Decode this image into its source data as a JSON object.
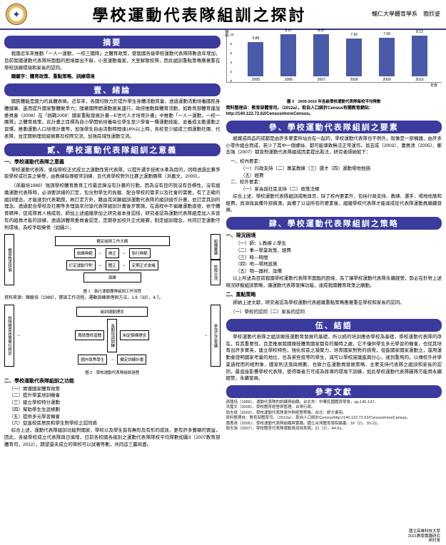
{
  "header": {
    "title": "學校運動代表隊組訓之探討",
    "affiliation": "輔仁大學體育學系",
    "author": "簡欣姿"
  },
  "sections": {
    "abstract": {
      "head": "摘要",
      "body": "我國近年來推動「一人一運動，一校三國隊」之體育政策，使我國各級學校運動代表隊隊數逐年增加，目前我國運動代表隊所面臨的困境層出不窮，小至運動傷害，大至解散校隊，因此組訓重點策略應著重在學校訓練環境和家長的認同。",
      "keywords": "關鍵字：體育政策、重點策略、訓練環境"
    },
    "s1": {
      "head": "壹、緒論",
      "body": "國民體能是國力的具體表徵。近年來，各國均致力於提升學生身體活動質量，透過運動活動培養國民身體健康、進而提升國家整體競爭力；隨著國際間運動風氣盛行，政府推動興體育活動，如教育部體育建設委員會（2008）在「挑戰2008：國家重點發展計畫—E世代人才培育計畫」中推動「一人一運動，一校一團隊」之體育政策，此計畫之目標為自小學開始培養每位學生至少學會一種運動技能，並養成主動運動之習慣，推動運動人口培增計畫等，加強學生自由活動時間達18%以上時，各校至少組成三個運動社團、代表隊，並定期辦理班級競賽及校際交流，加強區域性運動交流。"
    },
    "s2": {
      "head": "貳、學校運動代表隊組訓之意義",
      "subhead1": "一、學校運動代表隊之意義",
      "body1": "學校運動代表隊，係指學校正式成立之運動性質代表隊，以提升選手技術水準為目的，同時透過比賽爭取學校或社區之榮譽，由教練指導經常訓練、且代表學校對外比賽之運動團隊（洪嘉文，2009）。",
      "body2": "（孫龍培1989）強調學校體育教育工作最忌諱沒有計畫的行動，因為沒有目的就沒有目標性，沒有組織運動代表隊時，必須要詳細的訂定，包含對學生的負載、配合學校的需求以及社會的需要，有了正確的組訓理念，才能達到代表範圍，故訂定方針，藉由其突顯組訓運動代表隊的組訓值作計畫、並訂定其訓的理念、透過配合學校及社團等多理論來討論代表隊組訓計畫後步實施，在過程中不偏離運動道德，依守體育精神，促成隊員人格成就，師加上述組織參加之研究者本身認結，研究者認為運動代表隊組是加入未曾有的組員才能的訓練，透過訓體育委員會認定，定期參加校外正式競賽，制定組訓理念，共同訂定運動守則環境，為校爭取榮譽（如圖2）。",
      "subhead2": "二、學校運動代表隊組訓之功能",
      "func_list": [
        "（一）實徹國家體育政策",
        "（二）提升學業培訓機會",
        "（三）建立學校特分運動",
        "（四）幫助學生生涯規劃",
        "（五）提供多元學習機會",
        "（六）促進校區居民和學生對學校之認同感"
      ],
      "body3": "綜合上述，運動代表隊組訓功能對國家、學校以及學生皆有無形及有形的成效，更有許多豐碩的實益，因此，各級學校成立代表隊與日俱增，日前各校國各級別之運動代表隊隊校平均隊數如圖3（2007教育部體育司，2012），期望還未成立的學校可以試著等劃，共同造三贏局面。"
    },
    "s3": {
      "head": "參、學校運動代表隊組訓之要素",
      "body": "組織或商品的成都是由許多要素所站合在一起的，學校運動代表隊也不例外，就像是一部機器，由許多小零件組合而成，若少了其中一個螺絲、都可能導致無法正常運作。翁志成（2003）、蕭惠清（2005）、鄭志強（2007）都曾對運動代表隊組成因素提出看法，研究者師納如下：",
      "in_list_head": "一、校內要素：",
      "in_list": [
        "（一）行政支持（二）專業教練（三）選才（四）運動場地他施",
        "（五）經費"
      ],
      "out_list_head": "二、校外要素：",
      "out_list": [
        "（一）家長與社區支持（二）政策法規"
      ],
      "body2": "綜合上述，學校運動代表隊組訓成敗與否，除了校內要素外，包括行政支持、教練、選手、場地他施和經費，尚須與具備外部資源，具備了以這所有的要素後，組織學校代表隊才能達成從代表隊運動員繼續發展。"
    },
    "s4": {
      "head": "肆、學校運動代表隊組訓之策略",
      "subhead": "一、現況困境",
      "list": [
        "（一）師：1.教練 2.學生",
        "（二）事—學業政策、經費",
        "（三）時—時間",
        "（四）地—場地設施",
        "（五）物—器材、設備"
      ],
      "body": "以上所述為目前我國學校運動代表隊常面臨的困境，為了讓學校運動代表隊永續經營，勢必在針對上述現況研擬組訓策略，讓運動代表隊發揮功能，達成我國體育政策之願勤。",
      "subhead2": "二、重點策略",
      "body2": "師納上述文獻，研究者認為學校運動代表組織重點策略應著重在學校和家長的認同。",
      "list2": "（一）學校的認同（二）家長的認同"
    },
    "s5": {
      "head": "伍、結語",
      "body": "學校運動代表隊之組訓競技運動育發展的基礎，所以統的培訓應依學校為基礎，學校運動代表隊的存在，有其重要性，且是推展我國競技體育國家都有的獨特之處，它不僅供學生多元學習的機會，也從其培育出許多實英，建立學校特色，強化校區之凝聚力，培育國家對對的感覺，但進國家國家運動立，還用運動會證明國家考量的地位，也為某些技等的學生，減可以學校諾議進興分心，達到重飛的。以傳校外井學業過程而的相對象，國家則法落與規劃、也致力在運動員發展策略，主要支持代表隊之組訓和家長的認同，最直接影響學校代表隊，使得兩者方可成為將導的環境下訓練，如此學校運動代表隊圖隊方能用永續經營，永續發展。"
    },
    "refs": {
      "head": "參考文獻",
      "items": [
        "孫龍培（1989）。運動代表隊的訓練與組織。台北市：中華民國體育學會。pp.140-147。",
        "洪嘉文（2009）。學校體育經營與管理。台灣行政。",
        "翁志成（2003）。學校運動代表隊運作與經營策略。台北：師大書苑。",
        "資料整理自：教育部體育司。（2012a）。取自人口統計Census/http://140.122.72.62/Census/moreCensus。",
        "蕭惠清（2005）。學校運動代表隊組織與實踐。國立台灣體育學院論叢。16（2）。93-22。",
        "鄭志強（2007）。學校體育代表隊運動員培訓系統。21（2）。44-51。"
      ]
    },
    "chart": {
      "y_max": 10,
      "y_ticks": [
        "10",
        "8",
        "6",
        "4",
        "2",
        "0"
      ],
      "y_label": "隊數",
      "values": [
        6.89,
        8.37,
        8.37,
        7.62,
        7.69,
        8.13
      ],
      "labels": [
        "2005",
        "2006",
        "2007",
        "2008",
        "2009",
        "2010"
      ],
      "x_label": "年度",
      "caption": "圖 3　2005-2010 年各級學校運動代表隊每校平均隊數",
      "source": "資料整理自：教育部體育司。（2012a）。取自人口統計Census有關教育網站：http://140.122.72.62/Census/moreCensus。",
      "bar_color": "#4a5aa8"
    },
    "fig1": {
      "boxes": {
        "tl": "體育敘述評價",
        "t1": "擬定組訓工作大綱",
        "m1": "訓練典範",
        "m2": "揭正",
        "m3": "執行典範",
        "m4": "組織審議",
        "b1": "訂定運動守則",
        "b2": "體正",
        "b3": "定期正式會議",
        "br": "校際交流",
        "bb": "演練"
      },
      "caption": "圖 1　執行運動團隊組訓工作流程",
      "source": "資料來源：陳龍培（1989），實訓工作流程，運動訓練原理與方法，1.8（33），4.7。"
    },
    "fig2": {
      "boxes": {
        "l": "校隊體育政策單位核定",
        "t": "組訓運動理念",
        "m1": "聘請專修習體",
        "m2": "長期培訓訓練",
        "m3": "制定錦標理念",
        "b": "國內保秀學生",
        "b2": "擬定訓練計畫",
        "r": "參加正式會議"
      },
      "caption": "圖 2　學校運動代表隊組訓過程"
    }
  },
  "footer": {
    "l1": "國立高雄科技大學",
    "l2": "2021教學實踐研究",
    "l3": "研討會"
  }
}
